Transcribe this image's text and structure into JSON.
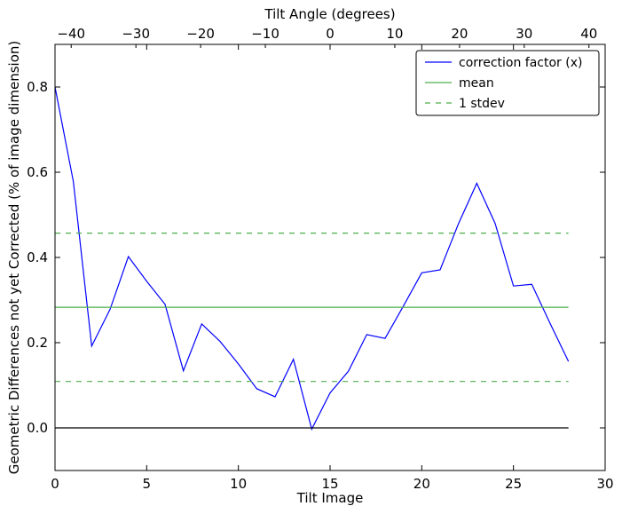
{
  "chart_data": {
    "type": "line",
    "xlabel": "Tilt Image",
    "ylabel": "Geometric Differences not yet Corrected (% of image dimension)",
    "x2label": "Tilt Angle (degrees)",
    "xlim": [
      0,
      30
    ],
    "ylim": [
      -0.1,
      0.9
    ],
    "x2lim": [
      -42.5,
      42.5
    ],
    "xticks": [
      0,
      5,
      10,
      15,
      20,
      25,
      30
    ],
    "yticks": [
      0.0,
      0.2,
      0.4,
      0.6,
      0.8
    ],
    "x2ticks": [
      -40,
      -30,
      -20,
      -10,
      0,
      10,
      20,
      30,
      40
    ],
    "xtick_labels": [
      "0",
      "5",
      "10",
      "15",
      "20",
      "25",
      "30"
    ],
    "ytick_labels": [
      "0.0",
      "0.2",
      "0.4",
      "0.6",
      "0.8"
    ],
    "x2tick_labels": [
      "−40",
      "−30",
      "−20",
      "−10",
      "0",
      "10",
      "20",
      "30",
      "40"
    ],
    "grid": false,
    "legend_position": "top-right",
    "series": [
      {
        "name": "correction factor (x)",
        "color": "#0000ff",
        "style": "solid",
        "x": [
          0,
          1,
          2,
          3,
          4,
          5,
          6,
          7,
          8,
          9,
          10,
          11,
          12,
          13,
          14,
          15,
          16,
          17,
          18,
          19,
          20,
          21,
          22,
          23,
          24,
          25,
          26,
          27,
          28
        ],
        "y": [
          0.8,
          0.578,
          0.192,
          0.278,
          0.402,
          0.344,
          0.29,
          0.134,
          0.244,
          0.203,
          0.15,
          0.092,
          0.073,
          0.161,
          -0.003,
          0.082,
          0.133,
          0.219,
          0.21,
          0.286,
          0.364,
          0.371,
          0.479,
          0.574,
          0.48,
          0.333,
          0.337,
          0.245,
          0.156
        ]
      },
      {
        "name": "mean",
        "color": "#4daf4a",
        "style": "solid",
        "x": [
          0,
          28
        ],
        "y": [
          0.283,
          0.283
        ]
      },
      {
        "name": "1 stdev",
        "color": "#4daf4a",
        "style": "dashed",
        "x": [
          0,
          28
        ],
        "y": [
          0.457,
          0.457
        ]
      },
      {
        "name": "",
        "color": "#4daf4a",
        "style": "dashed",
        "x": [
          0,
          28
        ],
        "y": [
          0.109,
          0.109
        ]
      },
      {
        "name": "",
        "color": "#000000",
        "style": "solid",
        "x": [
          0,
          28
        ],
        "y": [
          0.0,
          0.0
        ]
      }
    ]
  }
}
